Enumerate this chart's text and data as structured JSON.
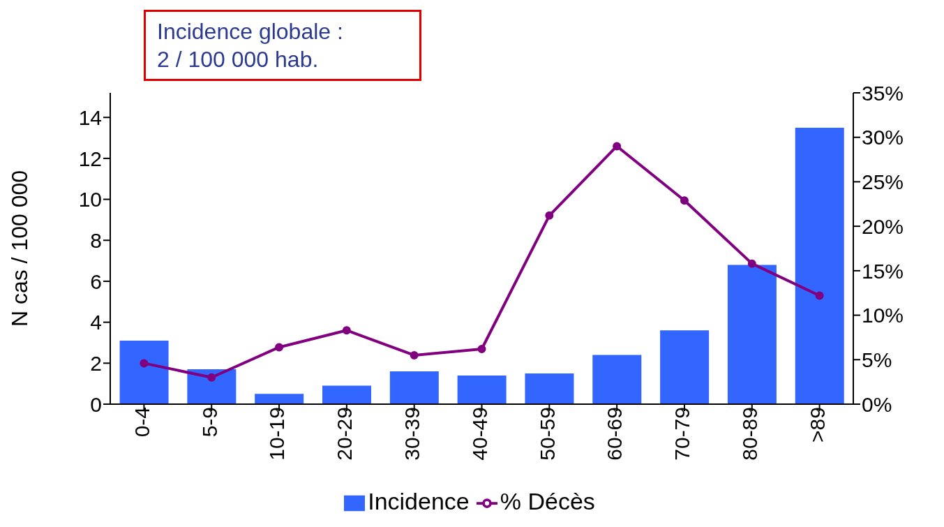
{
  "chart_data": {
    "type": "bar",
    "annotations": [
      "Incidence globale :\n2 / 100 000 hab."
    ],
    "ylabel": "N cas / 100 000",
    "categories": [
      "0-4",
      "5-9",
      "10-19",
      "20-29",
      "30-39",
      "40-49",
      "50-59",
      "60-69",
      "70-79",
      "80-89",
      ">89"
    ],
    "series": [
      {
        "name": "Incidence",
        "color": "#3366ff",
        "values": [
          3.1,
          1.7,
          0.5,
          0.9,
          1.6,
          1.4,
          1.5,
          2.4,
          3.6,
          6.8,
          13.5
        ]
      },
      {
        "name": "% Décès",
        "type": "line",
        "axis": "y2",
        "color": "#800080",
        "marker": "circle",
        "values": [
          4.6,
          3.0,
          6.4,
          8.3,
          5.5,
          6.2,
          21.2,
          29.0,
          22.9,
          15.8,
          12.2
        ]
      }
    ],
    "ylim": [
      0,
      15.2
    ],
    "yticks": [
      0,
      2,
      4,
      6,
      8,
      10,
      12,
      14
    ],
    "y2lim": [
      0,
      35
    ],
    "y2ticks": [
      {
        "value": 0,
        "label": "0%"
      },
      {
        "value": 5,
        "label": "5%"
      },
      {
        "value": 10,
        "label": "10%"
      },
      {
        "value": 15,
        "label": "15%"
      },
      {
        "value": 20,
        "label": "20%"
      },
      {
        "value": 25,
        "label": "25%"
      },
      {
        "value": 30,
        "label": "30%"
      },
      {
        "value": 35,
        "label": "35%"
      }
    ],
    "grid": false,
    "legend": "bottom"
  }
}
